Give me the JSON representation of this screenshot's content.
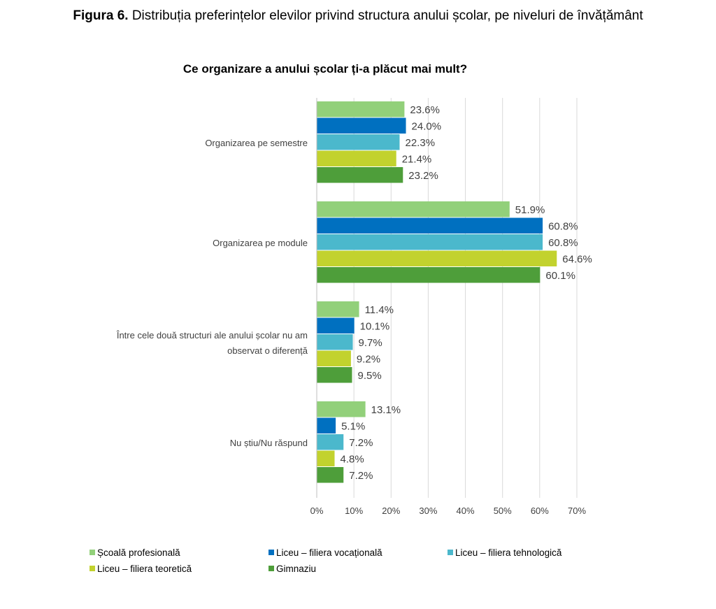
{
  "figure": {
    "label": "Figura 6.",
    "caption": "Distribuția preferințelor elevilor privind structura anului școlar, pe niveluri de învățământ"
  },
  "chart_data": {
    "type": "bar",
    "orientation": "horizontal",
    "title": "Ce organizare a anului școlar ți-a plăcut mai mult?",
    "categories": [
      "Organizarea pe semestre",
      "Organizarea pe module",
      "Între cele două structuri ale anului școlar nu am observat o diferență",
      "Nu știu/Nu răspund"
    ],
    "category_lines": [
      [
        "Organizarea pe semestre"
      ],
      [
        "Organizarea pe module"
      ],
      [
        "Între cele două structuri ale anului școlar nu am",
        "observat o diferență"
      ],
      [
        "Nu știu/Nu răspund"
      ]
    ],
    "series": [
      {
        "name": "Școală profesională",
        "color": "#92d07a",
        "values": [
          23.6,
          51.9,
          11.4,
          13.1
        ]
      },
      {
        "name": "Liceu – filiera vocațională",
        "color": "#0070c0",
        "values": [
          24.0,
          60.8,
          10.1,
          5.1
        ]
      },
      {
        "name": "Liceu – filiera tehnologică",
        "color": "#4bb8cc",
        "values": [
          22.3,
          60.8,
          9.7,
          7.2
        ]
      },
      {
        "name": "Liceu – filiera teoretică",
        "color": "#c2d22e",
        "values": [
          21.4,
          64.6,
          9.2,
          4.8
        ]
      },
      {
        "name": "Gimnaziu",
        "color": "#4e9e3a",
        "values": [
          23.2,
          60.1,
          9.5,
          7.2
        ]
      }
    ],
    "xlim": [
      0,
      70
    ],
    "xticks": [
      "0%",
      "10%",
      "20%",
      "30%",
      "40%",
      "50%",
      "60%",
      "70%"
    ],
    "grid": true,
    "legend": "bottom"
  }
}
